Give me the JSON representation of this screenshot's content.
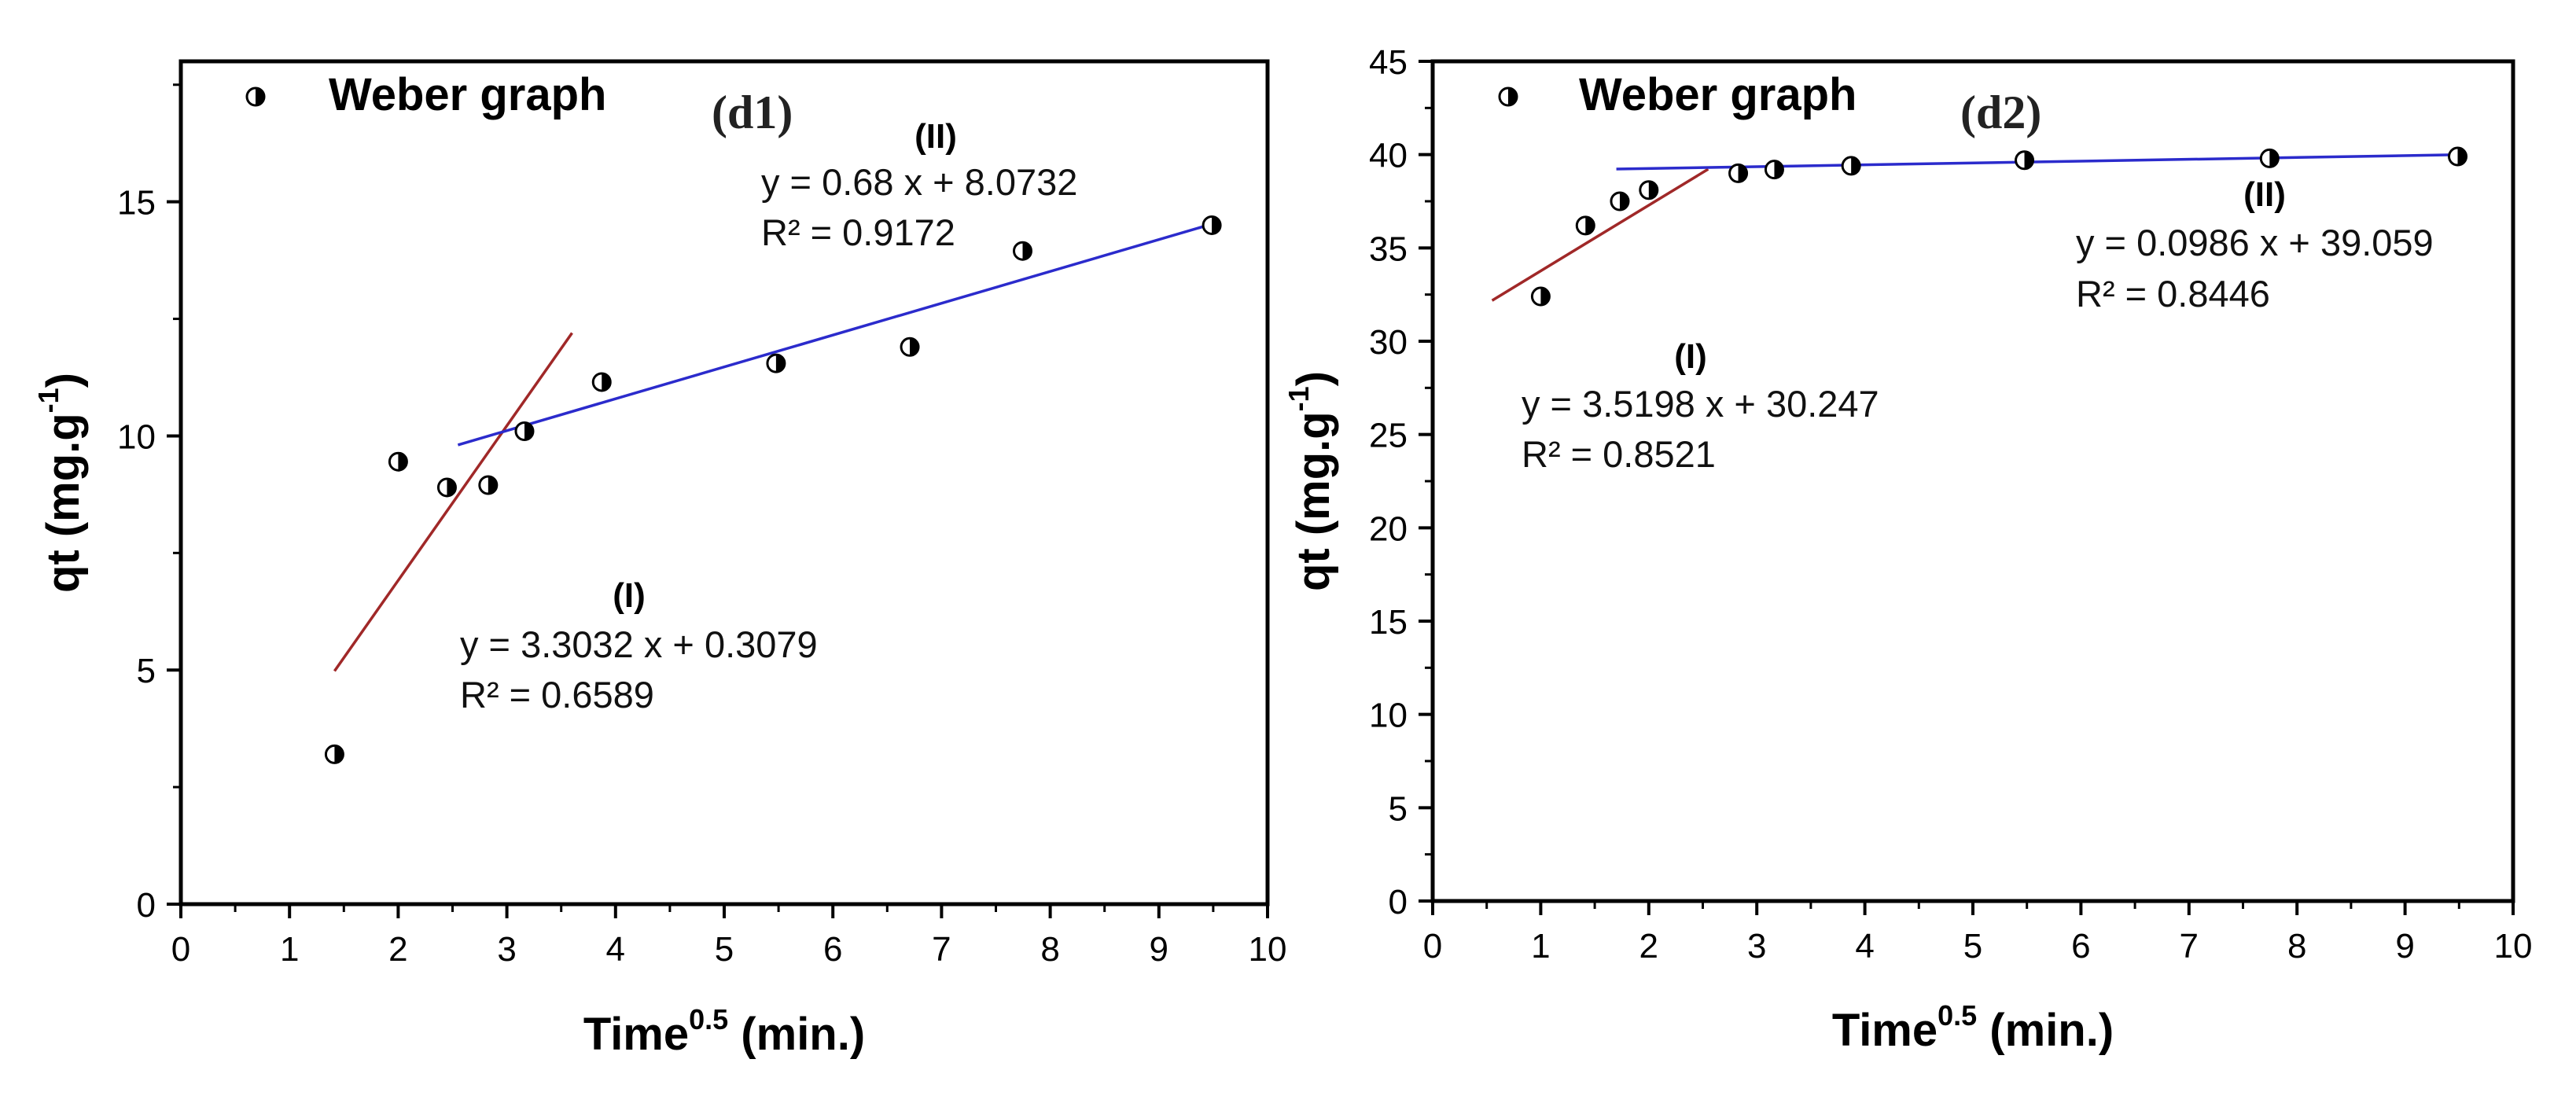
{
  "chart_data": [
    {
      "type": "scatter",
      "panel_label": "(d1)",
      "title": "",
      "xlabel": {
        "base": "Time",
        "sup": "0.5",
        "rest": " (min.)"
      },
      "ylabel": {
        "base": "qt (mg.g",
        "sup": "-1",
        "rest": ")"
      },
      "xlim": [
        0,
        10
      ],
      "ylim": [
        0,
        18
      ],
      "xticks": [
        0,
        1,
        2,
        3,
        4,
        5,
        6,
        7,
        8,
        9,
        10
      ],
      "yticks": [
        0,
        5,
        10,
        15
      ],
      "legend": {
        "label": "Weber graph",
        "position": "top-left"
      },
      "series": [
        {
          "name": "Weber graph",
          "x": [
            1.414,
            2.0,
            2.449,
            2.828,
            3.162,
            3.873,
            5.477,
            6.708,
            7.746,
            9.487
          ],
          "y": [
            3.2,
            9.45,
            8.9,
            8.95,
            10.1,
            11.15,
            11.55,
            11.9,
            13.95,
            14.5
          ]
        }
      ],
      "fits": [
        {
          "label": "(I)",
          "equation": "y = 3.3032 x + 0.3079",
          "r2": "R² = 0.6589",
          "slope": 3.3032,
          "intercept": 0.3079,
          "x_range": [
            1.414,
            3.6
          ],
          "color": "#a02828"
        },
        {
          "label": "(II)",
          "equation": "y = 0.68 x + 8.0732",
          "r2": "R² = 0.9172",
          "slope": 0.68,
          "intercept": 8.0732,
          "x_range": [
            2.55,
            9.5
          ],
          "color": "#2b2bcc"
        }
      ]
    },
    {
      "type": "scatter",
      "panel_label": "(d2)",
      "title": "",
      "xlabel": {
        "base": "Time",
        "sup": "0.5",
        "rest": " (min.)"
      },
      "ylabel": {
        "base": "qt (mg.g",
        "sup": "-1",
        "rest": ")"
      },
      "xlim": [
        0,
        10
      ],
      "ylim": [
        0,
        45
      ],
      "xticks": [
        0,
        1,
        2,
        3,
        4,
        5,
        6,
        7,
        8,
        9,
        10
      ],
      "yticks": [
        0,
        5,
        10,
        15,
        20,
        25,
        30,
        35,
        40,
        45
      ],
      "legend": {
        "label": "Weber graph",
        "position": "top-left"
      },
      "series": [
        {
          "name": "Weber graph",
          "x": [
            1.0,
            1.414,
            1.732,
            2.0,
            2.828,
            3.162,
            3.873,
            5.477,
            7.746,
            9.487
          ],
          "y": [
            32.4,
            36.2,
            37.5,
            38.1,
            39.0,
            39.2,
            39.4,
            39.7,
            39.8,
            39.9
          ]
        }
      ],
      "fits": [
        {
          "label": "(I)",
          "equation": "y = 3.5198 x + 30.247",
          "r2": "R² = 0.8521",
          "slope": 3.5198,
          "intercept": 30.247,
          "x_range": [
            0.55,
            2.55
          ],
          "color": "#a02828"
        },
        {
          "label": "(II)",
          "equation": "y = 0.0986 x + 39.059",
          "r2": "R² = 0.8446",
          "slope": 0.0986,
          "intercept": 39.059,
          "x_range": [
            1.7,
            9.5
          ],
          "color": "#2b2bcc"
        }
      ]
    }
  ]
}
